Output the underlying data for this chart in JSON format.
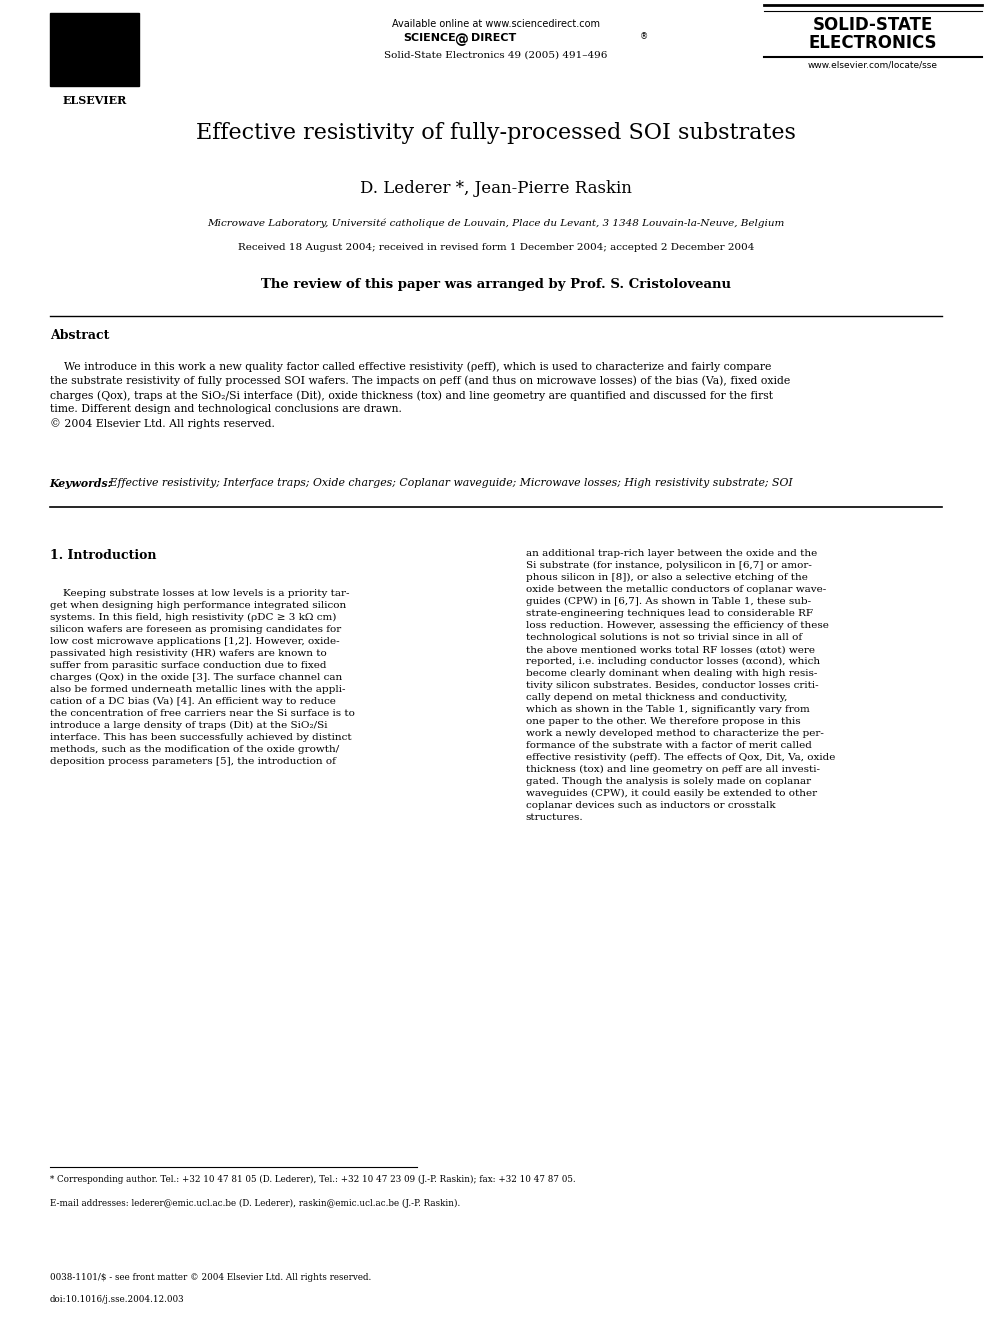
{
  "page_width": 9.92,
  "page_height": 13.23,
  "bg_color": "#ffffff",
  "title": "Effective resistivity of fully-processed SOI substrates",
  "authors": "D. Lederer *, Jean-Pierre Raskin",
  "affiliation": "Microwave Laboratory, Université catholique de Louvain, Place du Levant, 3 1348 Louvain-la-Neuve, Belgium",
  "received": "Received 18 August 2004; received in revised form 1 December 2004; accepted 2 December 2004",
  "review_note": "The review of this paper was arranged by Prof. S. Cristoloveanu",
  "header_center_line1": "Available online at www.sciencedirect.com",
  "header_center_line3": "Solid-State Electronics 49 (2005) 491–496",
  "journal_name_line1": "SOLID-STATE",
  "journal_name_line2": "ELECTRONICS",
  "journal_url": "www.elsevier.com/locate/sse",
  "elsevier_text": "ELSEVIER",
  "abstract_title": "Abstract",
  "keywords_label": "Keywords:",
  "keywords_text": " Effective resistivity; Interface traps; Oxide charges; Coplanar waveguide; Microwave losses; High resistivity substrate; SOI",
  "section1_title": "1. Introduction",
  "footnote1": "* Corresponding author. Tel.: +32 10 47 81 05 (D. Lederer), Tel.: +32 10 47 23 09 (J.-P. Raskin); fax: +32 10 47 87 05.",
  "footnote2": "E-mail addresses: lederer@emic.ucl.ac.be (D. Lederer), raskin@emic.ucl.ac.be (J.-P. Raskin).",
  "footer1": "0038-1101/$ - see front matter © 2004 Elsevier Ltd. All rights reserved.",
  "footer2": "doi:10.1016/j.sse.2004.12.003"
}
